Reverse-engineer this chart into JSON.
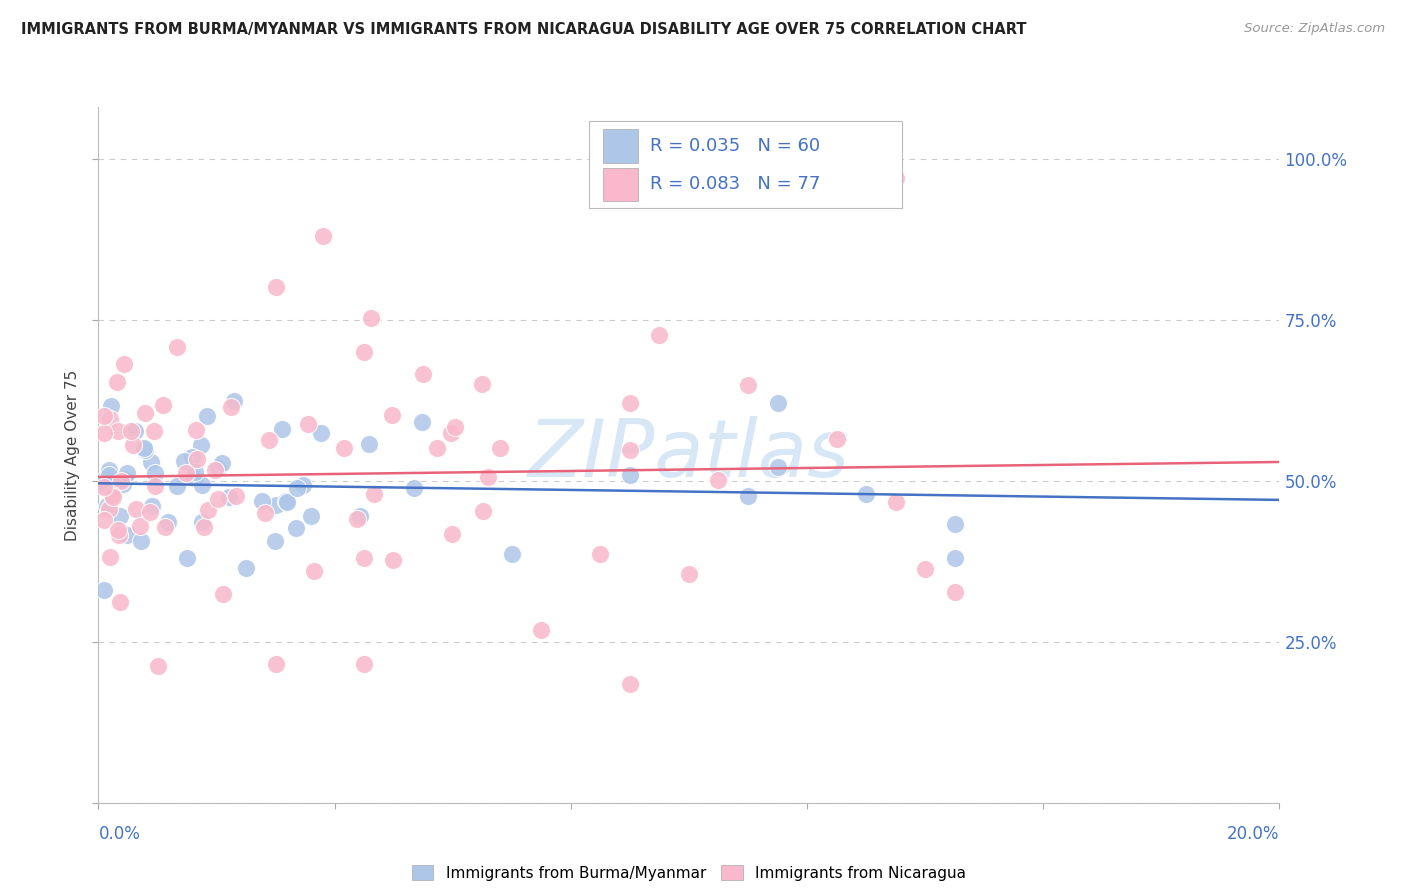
{
  "title": "IMMIGRANTS FROM BURMA/MYANMAR VS IMMIGRANTS FROM NICARAGUA DISABILITY AGE OVER 75 CORRELATION CHART",
  "source": "Source: ZipAtlas.com",
  "ylabel": "Disability Age Over 75",
  "legend_r_n_blue": "R = 0.035   N = 60",
  "legend_r_n_pink": "R = 0.083   N = 77",
  "legend_label_blue": "Immigrants from Burma/Myanmar",
  "legend_label_pink": "Immigrants from Nicaragua",
  "watermark": "ZIPatlas",
  "blue_fill": "#aec6e8",
  "pink_fill": "#f9b8cb",
  "line_blue": "#4472c4",
  "line_pink": "#e8637a",
  "text_blue": "#4472c4",
  "grid_color": "#cccccc",
  "title_color": "#222222",
  "source_color": "#999999",
  "ylabel_color": "#444444",
  "xlim": [
    0.0,
    0.2
  ],
  "ylim": [
    0.0,
    1.08
  ],
  "yticks": [
    0.0,
    0.25,
    0.5,
    0.75,
    1.0
  ],
  "ytick_labels": [
    "",
    "25.0%",
    "50.0%",
    "75.0%",
    "100.0%"
  ],
  "xtick_labels": [
    "0.0%",
    "",
    "",
    "",
    "",
    "20.0%"
  ],
  "background": "#ffffff"
}
